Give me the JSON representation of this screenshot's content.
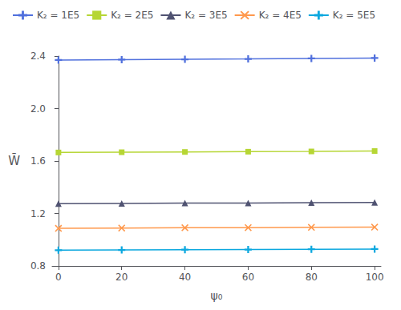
{
  "chart_data": {
    "type": "line",
    "x": [
      0,
      20,
      40,
      60,
      80,
      100
    ],
    "series": [
      {
        "name": "K₂ = 1E5",
        "marker": "plus",
        "values": [
          2.37,
          2.373,
          2.375,
          2.378,
          2.382,
          2.385
        ]
      },
      {
        "name": "K₂ = 2E5",
        "marker": "square",
        "values": [
          1.665,
          1.667,
          1.669,
          1.671,
          1.673,
          1.676
        ]
      },
      {
        "name": "K₂ = 3E5",
        "marker": "triangle",
        "values": [
          1.275,
          1.277,
          1.279,
          1.28,
          1.282,
          1.284
        ]
      },
      {
        "name": "K₂ = 4E5",
        "marker": "x",
        "values": [
          1.087,
          1.089,
          1.091,
          1.092,
          1.094,
          1.096
        ]
      },
      {
        "name": "K₂ = 5E5",
        "marker": "plus",
        "values": [
          0.92,
          0.922,
          0.924,
          0.925,
          0.927,
          0.929
        ]
      }
    ],
    "x_label": "ψ₀",
    "y_label": "W̄",
    "xlim": [
      -2,
      102
    ],
    "ylim": [
      0.8,
      2.4
    ],
    "xticks": [
      0,
      20,
      40,
      60,
      80,
      100
    ],
    "yticks": [
      0.8,
      1.2,
      1.6,
      {
        "value": 2.0,
        "label": "2.0"
      },
      2.4
    ],
    "grid": false,
    "legend": "upper left"
  }
}
